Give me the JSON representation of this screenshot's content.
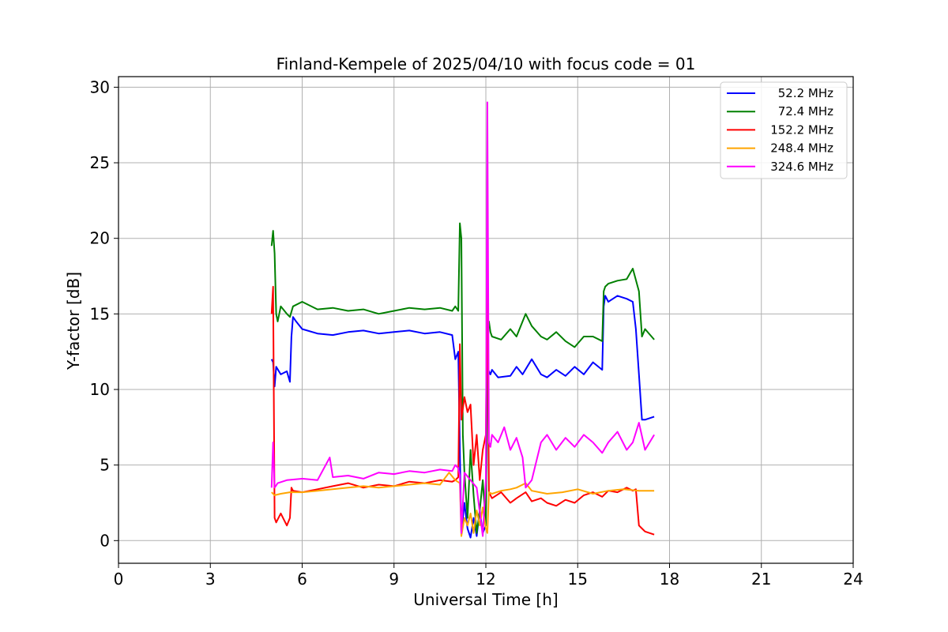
{
  "chart_data": {
    "type": "line",
    "title": "Finland-Kempele of 2025/04/10 with focus code = 01",
    "xlabel": "Universal Time [h]",
    "ylabel": "Y-factor [dB]",
    "xlim": [
      0,
      24
    ],
    "ylim": [
      -1.5,
      30.7
    ],
    "xticks": [
      0,
      3,
      6,
      9,
      12,
      15,
      18,
      21,
      24
    ],
    "yticks": [
      0,
      5,
      10,
      15,
      20,
      25,
      30
    ],
    "grid": true,
    "legend_position": "top-right",
    "series": [
      {
        "name": "52.2 MHz",
        "color": "#0000ff",
        "x": [
          5.0,
          5.05,
          5.1,
          5.15,
          5.3,
          5.5,
          5.6,
          5.65,
          5.7,
          5.8,
          6.0,
          6.5,
          7.0,
          7.5,
          8.0,
          8.5,
          9.0,
          9.5,
          10.0,
          10.5,
          10.9,
          11.0,
          11.1,
          11.15,
          11.2,
          11.3,
          11.4,
          11.5,
          11.6,
          11.7,
          11.8,
          11.9,
          12.0,
          12.05,
          12.1,
          12.15,
          12.2,
          12.4,
          12.8,
          13.0,
          13.2,
          13.5,
          13.8,
          14.0,
          14.3,
          14.6,
          14.9,
          15.2,
          15.5,
          15.8,
          15.85,
          15.9,
          16.0,
          16.3,
          16.6,
          16.8,
          16.9,
          17.0,
          17.1,
          17.2,
          17.5
        ],
        "y": [
          12.0,
          11.8,
          10.2,
          11.5,
          11.0,
          11.2,
          10.5,
          13.5,
          14.8,
          14.5,
          14.0,
          13.7,
          13.6,
          13.8,
          13.9,
          13.7,
          13.8,
          13.9,
          13.7,
          13.8,
          13.6,
          12.0,
          12.5,
          6.0,
          0.5,
          2.5,
          0.8,
          0.2,
          1.5,
          0.3,
          2.0,
          0.5,
          1.0,
          11.5,
          11.2,
          11.0,
          11.3,
          10.8,
          10.9,
          11.5,
          11.0,
          12.0,
          11.0,
          10.8,
          11.3,
          10.9,
          11.5,
          11.0,
          11.8,
          11.3,
          15.5,
          16.2,
          15.8,
          16.2,
          16.0,
          15.8,
          14.0,
          11.0,
          8.0,
          8.0,
          8.2
        ]
      },
      {
        "name": "72.4 MHz",
        "color": "#008000",
        "x": [
          5.0,
          5.05,
          5.1,
          5.15,
          5.2,
          5.3,
          5.5,
          5.6,
          5.7,
          6.0,
          6.5,
          7.0,
          7.5,
          8.0,
          8.5,
          9.0,
          9.5,
          10.0,
          10.5,
          10.9,
          11.0,
          11.1,
          11.15,
          11.2,
          11.25,
          11.3,
          11.4,
          11.5,
          11.6,
          11.7,
          11.8,
          11.9,
          12.0,
          12.05,
          12.1,
          12.15,
          12.2,
          12.5,
          12.8,
          13.0,
          13.3,
          13.5,
          13.8,
          14.0,
          14.3,
          14.6,
          14.9,
          15.2,
          15.5,
          15.8,
          15.85,
          15.9,
          16.0,
          16.3,
          16.6,
          16.8,
          17.0,
          17.1,
          17.2,
          17.5
        ],
        "y": [
          19.5,
          20.5,
          19.0,
          15.0,
          14.5,
          15.5,
          15.0,
          14.8,
          15.5,
          15.8,
          15.3,
          15.4,
          15.2,
          15.3,
          15.0,
          15.2,
          15.4,
          15.3,
          15.4,
          15.2,
          15.5,
          15.2,
          21.0,
          20.0,
          7.0,
          4.5,
          1.5,
          6.0,
          3.0,
          0.5,
          2.0,
          4.0,
          1.0,
          13.5,
          14.5,
          13.8,
          13.5,
          13.3,
          14.0,
          13.5,
          15.0,
          14.2,
          13.5,
          13.3,
          13.8,
          13.2,
          12.8,
          13.5,
          13.5,
          13.2,
          16.5,
          16.8,
          17.0,
          17.2,
          17.3,
          18.0,
          16.5,
          13.5,
          14.0,
          13.3
        ]
      },
      {
        "name": "152.2 MHz",
        "color": "#ff0000",
        "x": [
          5.0,
          5.05,
          5.1,
          5.15,
          5.3,
          5.5,
          5.6,
          5.65,
          5.7,
          6.0,
          6.5,
          7.0,
          7.5,
          8.0,
          8.5,
          9.0,
          9.5,
          10.0,
          10.5,
          10.9,
          11.0,
          11.1,
          11.15,
          11.2,
          11.3,
          11.4,
          11.5,
          11.6,
          11.7,
          11.8,
          11.9,
          12.0,
          12.05,
          12.1,
          12.15,
          12.2,
          12.5,
          12.8,
          13.0,
          13.3,
          13.5,
          13.8,
          14.0,
          14.3,
          14.6,
          14.9,
          15.2,
          15.5,
          15.8,
          16.0,
          16.3,
          16.6,
          16.8,
          16.9,
          17.0,
          17.1,
          17.2,
          17.5
        ],
        "y": [
          15.0,
          16.8,
          1.5,
          1.2,
          1.8,
          1.0,
          1.5,
          3.5,
          3.3,
          3.2,
          3.4,
          3.6,
          3.8,
          3.5,
          3.7,
          3.6,
          3.9,
          3.8,
          4.0,
          3.9,
          4.0,
          4.2,
          13.0,
          8.0,
          9.5,
          8.5,
          9.0,
          5.0,
          7.0,
          4.0,
          6.0,
          7.0,
          18.0,
          3.2,
          3.0,
          2.8,
          3.2,
          2.5,
          2.8,
          3.2,
          2.6,
          2.8,
          2.5,
          2.3,
          2.7,
          2.5,
          3.0,
          3.2,
          2.9,
          3.3,
          3.2,
          3.5,
          3.3,
          3.4,
          1.0,
          0.8,
          0.6,
          0.4
        ]
      },
      {
        "name": "248.4 MHz",
        "color": "#ffa500",
        "x": [
          5.0,
          5.1,
          5.3,
          5.6,
          6.0,
          6.5,
          7.0,
          7.5,
          8.0,
          8.5,
          9.0,
          9.5,
          10.0,
          10.5,
          10.8,
          11.0,
          11.15,
          11.2,
          11.3,
          11.4,
          11.5,
          11.6,
          11.7,
          11.8,
          11.9,
          12.0,
          12.05,
          12.1,
          12.2,
          12.5,
          12.8,
          13.0,
          13.3,
          13.5,
          14.0,
          14.5,
          15.0,
          15.5,
          16.0,
          16.5,
          17.0,
          17.5
        ],
        "y": [
          3.2,
          3.0,
          3.1,
          3.2,
          3.2,
          3.3,
          3.4,
          3.5,
          3.6,
          3.5,
          3.6,
          3.7,
          3.8,
          3.7,
          4.5,
          4.0,
          3.8,
          0.3,
          1.5,
          1.0,
          1.8,
          0.5,
          2.0,
          1.0,
          2.2,
          0.8,
          0.5,
          3.2,
          3.1,
          3.3,
          3.4,
          3.5,
          3.8,
          3.3,
          3.1,
          3.2,
          3.4,
          3.1,
          3.3,
          3.4,
          3.3,
          3.3
        ]
      },
      {
        "name": "324.6 MHz",
        "color": "#ff00ff",
        "x": [
          5.0,
          5.05,
          5.1,
          5.2,
          5.5,
          6.0,
          6.5,
          6.9,
          7.0,
          7.5,
          8.0,
          8.5,
          9.0,
          9.5,
          10.0,
          10.5,
          10.9,
          11.0,
          11.1,
          11.15,
          11.2,
          11.3,
          11.5,
          11.7,
          11.9,
          12.0,
          12.05,
          12.1,
          12.15,
          12.2,
          12.4,
          12.6,
          12.8,
          13.0,
          13.2,
          13.3,
          13.5,
          13.8,
          14.0,
          14.3,
          14.6,
          14.9,
          15.2,
          15.5,
          15.8,
          16.0,
          16.3,
          16.6,
          16.8,
          17.0,
          17.2,
          17.5
        ],
        "y": [
          3.5,
          6.5,
          3.5,
          3.8,
          4.0,
          4.1,
          4.0,
          5.5,
          4.2,
          4.3,
          4.1,
          4.5,
          4.4,
          4.6,
          4.5,
          4.7,
          4.6,
          5.0,
          4.8,
          4.3,
          0.5,
          4.5,
          4.0,
          3.5,
          0.3,
          4.0,
          29.0,
          6.5,
          6.2,
          7.0,
          6.5,
          7.5,
          6.0,
          6.8,
          5.5,
          3.5,
          4.0,
          6.5,
          7.0,
          6.0,
          6.8,
          6.2,
          7.0,
          6.5,
          5.8,
          6.5,
          7.2,
          6.0,
          6.5,
          7.8,
          6.0,
          7.0
        ]
      }
    ]
  }
}
